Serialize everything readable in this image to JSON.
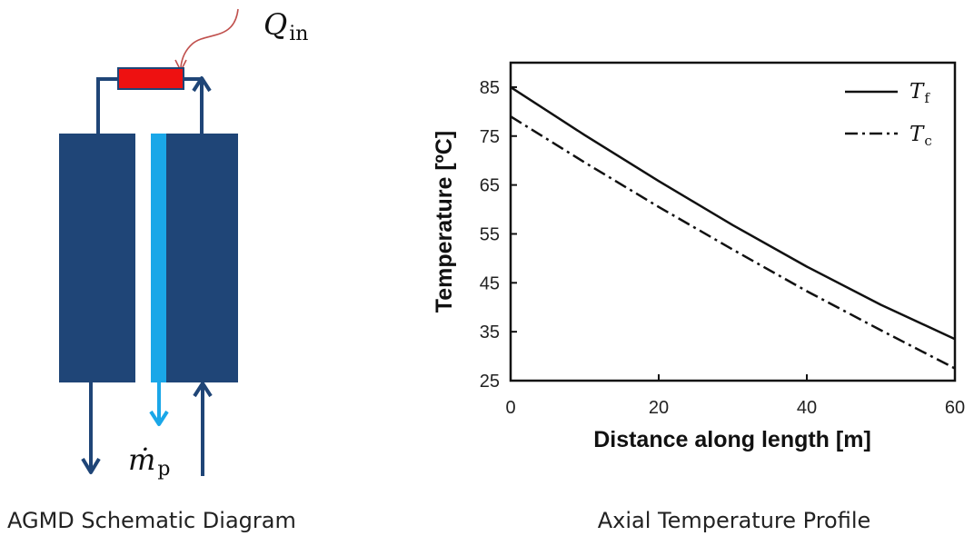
{
  "schematic": {
    "caption": "AGMD Schematic Diagram",
    "heat_label": {
      "var": "Q",
      "sub": "in"
    },
    "permeate_label": {
      "var": "ṁ",
      "sub": "p"
    },
    "colors": {
      "module": "#1f4577",
      "heater": "#ee1111",
      "gap": "#ffffff",
      "permeate": "#1aa7e8",
      "arrow": "#1f4577",
      "heat_line": "#c0504d"
    }
  },
  "chart_data": {
    "type": "line",
    "title": "",
    "caption": "Axial Temperature Profile",
    "xlabel": "Distance along length [m]",
    "ylabel": "Temperature [ºC]",
    "xlim": [
      0,
      60
    ],
    "ylim": [
      25,
      90
    ],
    "xticks": [
      "0",
      "20",
      "40",
      "60"
    ],
    "yticks": [
      "25",
      "35",
      "45",
      "55",
      "65",
      "75",
      "85"
    ],
    "grid": false,
    "legend_position": "top-right",
    "x": [
      0,
      10,
      20,
      30,
      40,
      50,
      60
    ],
    "series": [
      {
        "name_var": "T",
        "name_sub": "f",
        "style": "solid",
        "values": [
          85.0,
          75.2,
          65.8,
          56.8,
          48.3,
          40.5,
          33.5
        ]
      },
      {
        "name_var": "T",
        "name_sub": "c",
        "style": "dashdot",
        "values": [
          79.0,
          69.6,
          60.5,
          51.8,
          43.3,
          35.3,
          27.5
        ]
      }
    ]
  }
}
